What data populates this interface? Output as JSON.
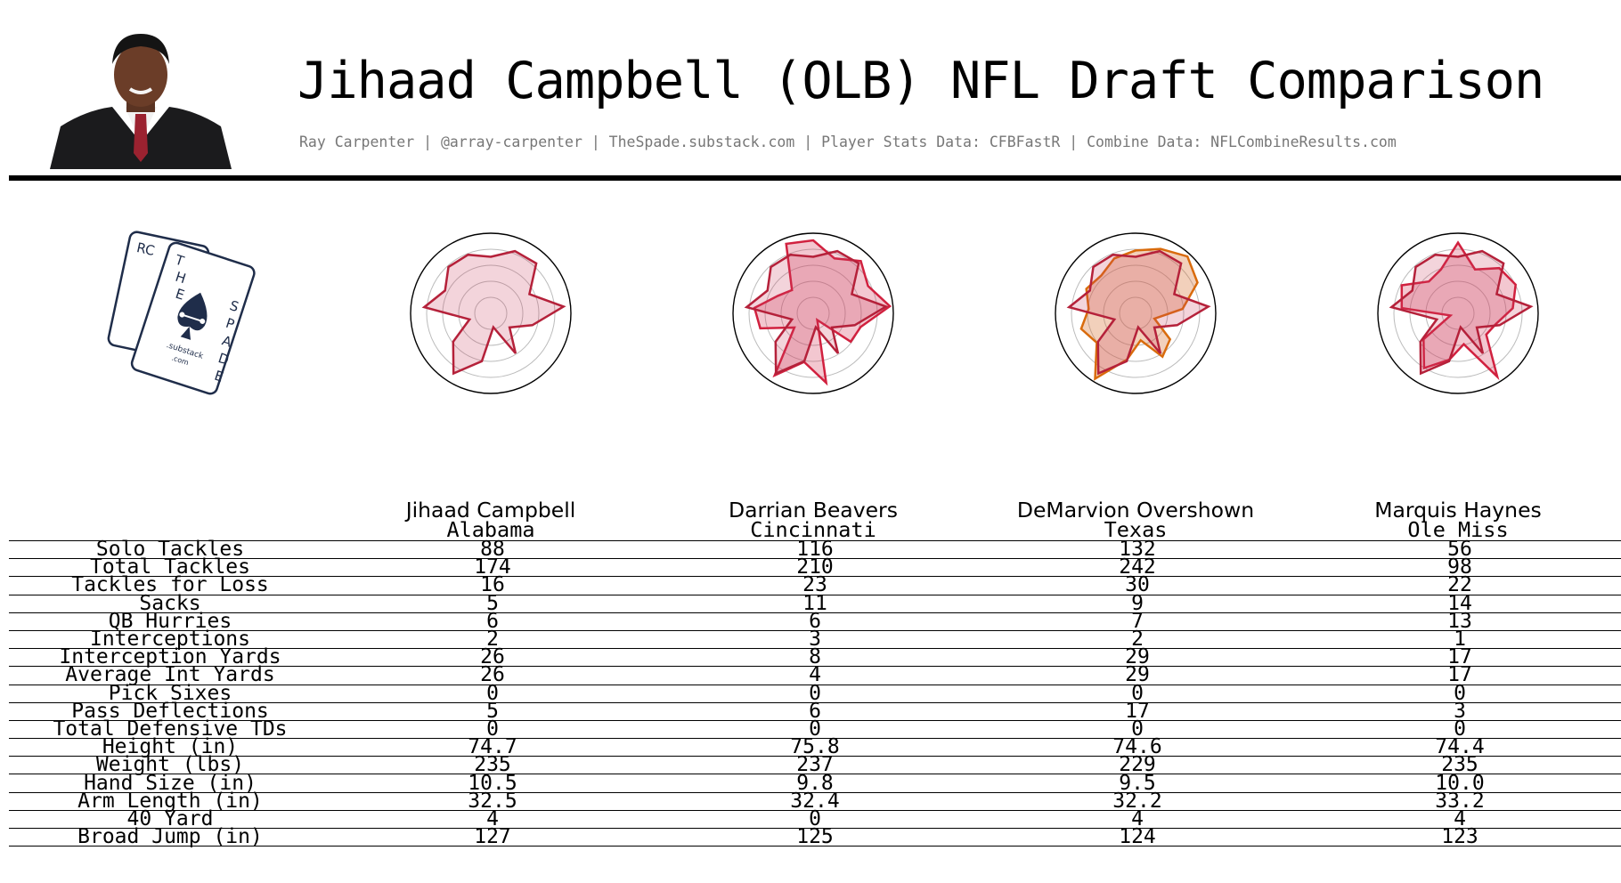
{
  "header": {
    "title": "Jihaad Campbell (OLB) NFL Draft Comparison",
    "subtitle": "Ray Carpenter | @array-carpenter | TheSpade.substack.com | Player Stats Data: CFBFastR | Combine Data: NFLCombineResults.com"
  },
  "logo": {
    "back_card_letters": "RC",
    "front_card_letters": [
      "T",
      "H",
      "E",
      "S",
      "P",
      "A",
      "D",
      "E"
    ],
    "brand_text": ".substack",
    "brand_tld": ".com",
    "color": "#1f2d4a"
  },
  "colors": {
    "campbell_line": "#b5213a",
    "campbell_fill": "rgba(200,60,90,0.22)",
    "comp_line": "#d1213f",
    "comp_fill": "rgba(214,70,100,0.30)",
    "overshown_line": "#d96b0c",
    "overshown_fill": "rgba(217,120,60,0.35)"
  },
  "players": [
    {
      "name": "Jihaad Campbell",
      "school": "Alabama"
    },
    {
      "name": "Darrian Beavers",
      "school": "Cincinnati"
    },
    {
      "name": "DeMarvion Overshown",
      "school": "Texas"
    },
    {
      "name": "Marquis Haynes",
      "school": "Ole Miss"
    }
  ],
  "chart_data": {
    "type": "table",
    "columns": [
      "Jihaad Campbell",
      "Darrian Beavers",
      "DeMarvion Overshown",
      "Marquis Haynes"
    ],
    "rows": [
      {
        "label": "Solo Tackles",
        "values": [
          "88",
          "116",
          "132",
          "56"
        ]
      },
      {
        "label": "Total Tackles",
        "values": [
          "174",
          "210",
          "242",
          "98"
        ]
      },
      {
        "label": "Tackles for Loss",
        "values": [
          "16",
          "23",
          "30",
          "22"
        ]
      },
      {
        "label": "Sacks",
        "values": [
          "5",
          "11",
          "9",
          "14"
        ]
      },
      {
        "label": "QB Hurries",
        "values": [
          "6",
          "6",
          "7",
          "13"
        ]
      },
      {
        "label": "Interceptions",
        "values": [
          "2",
          "3",
          "2",
          "1"
        ]
      },
      {
        "label": "Interception Yards",
        "values": [
          "26",
          "8",
          "29",
          "17"
        ]
      },
      {
        "label": "Average Int Yards",
        "values": [
          "26",
          "4",
          "29",
          "17"
        ]
      },
      {
        "label": "Pick Sixes",
        "values": [
          "0",
          "0",
          "0",
          "0"
        ]
      },
      {
        "label": "Pass Deflections",
        "values": [
          "5",
          "6",
          "17",
          "3"
        ]
      },
      {
        "label": "Total Defensive TDs",
        "values": [
          "0",
          "0",
          "0",
          "0"
        ]
      },
      {
        "label": "Height (in)",
        "values": [
          "74.7",
          "75.8",
          "74.6",
          "74.4"
        ]
      },
      {
        "label": "Weight (lbs)",
        "values": [
          "235",
          "237",
          "229",
          "235"
        ]
      },
      {
        "label": "Hand Size (in)",
        "values": [
          "10.5",
          "9.8",
          "9.5",
          "10.0"
        ]
      },
      {
        "label": "Arm Length (in)",
        "values": [
          "32.5",
          "32.4",
          "32.2",
          "33.2"
        ]
      },
      {
        "label": "40 Yard",
        "values": [
          "4",
          "0",
          "4",
          "4"
        ]
      },
      {
        "label": "Broad Jump (in)",
        "values": [
          "127",
          "125",
          "124",
          "123"
        ]
      }
    ],
    "radar": {
      "type": "radar",
      "rmax": 1,
      "rings": [
        0.2,
        0.4,
        0.6,
        0.8
      ],
      "campbell": [
        0.72,
        0.85,
        0.86,
        0.55,
        0.93,
        0.55,
        0.3,
        0.6,
        0.18,
        0.62,
        0.9,
        0.6,
        0.28,
        0.85,
        0.65,
        0.8,
        0.8
      ],
      "comparisons": [
        {
          "player": "Darrian Beavers",
          "values": [
            0.93,
            0.75,
            0.9,
            0.78,
            0.98,
            0.63,
            0.6,
            0.1,
            0.9,
            0.63,
            0.93,
            0.3,
            0.7,
            0.75,
            0.5,
            0.4,
            0.95
          ]
        },
        {
          "player": "DeMarvion Overshown",
          "values": [
            0.8,
            0.88,
            0.98,
            0.88,
            0.6,
            0.25,
            0.55,
            0.65,
            0.35,
            0.6,
            0.98,
            0.62,
            0.72,
            0.6,
            0.7,
            0.65,
            0.75
          ]
        },
        {
          "player": "Marquis Haynes",
          "values": [
            0.9,
            0.6,
            0.78,
            0.82,
            0.7,
            0.5,
            0.45,
            0.95,
            0.4,
            0.6,
            0.82,
            0.55,
            0.1,
            0.72,
            0.8,
            0.55,
            0.6
          ]
        }
      ]
    }
  }
}
